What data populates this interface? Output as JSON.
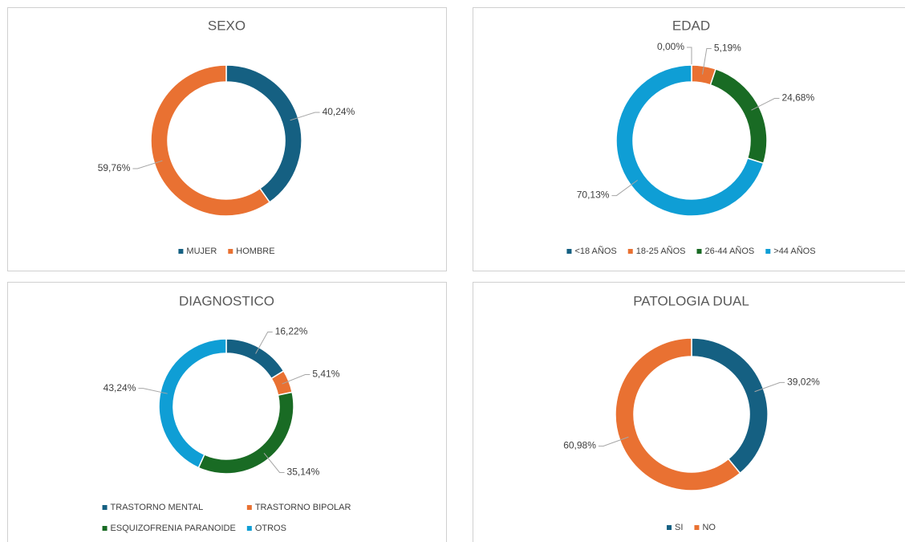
{
  "chart_data": [
    {
      "type": "donut",
      "title": "SEXO",
      "categories": [
        "MUJER",
        "HOMBRE"
      ],
      "values": [
        40.24,
        59.76
      ],
      "value_labels": [
        "40,24%",
        "59,76%"
      ],
      "colors": [
        "#156082",
        "#e97132"
      ],
      "legend": "bottom"
    },
    {
      "type": "donut",
      "title": "EDAD",
      "categories": [
        "<18 AÑOS",
        "18-25 AÑOS",
        "26-44 AÑOS",
        ">44 AÑOS"
      ],
      "values": [
        0,
        5.19,
        24.68,
        70.13
      ],
      "value_labels": [
        "0,00%",
        "5,19%",
        "24,68%",
        "70,13%"
      ],
      "colors": [
        "#156082",
        "#e97132",
        "#196b24",
        "#0f9ed5"
      ],
      "legend": "bottom"
    },
    {
      "type": "donut",
      "title": "DIAGNOSTICO",
      "categories": [
        "TRASTORNO MENTAL",
        "TRASTORNO BIPOLAR",
        "ESQUIZOFRENIA PARANOIDE",
        "OTROS"
      ],
      "values": [
        16.22,
        5.41,
        35.14,
        43.24
      ],
      "value_labels": [
        "16,22%",
        "5,41%",
        "35,14%",
        "43,24%"
      ],
      "colors": [
        "#156082",
        "#e97132",
        "#196b24",
        "#0f9ed5"
      ],
      "legend": "bottom"
    },
    {
      "type": "donut",
      "title": "PATOLOGIA DUAL",
      "categories": [
        "SI",
        "NO"
      ],
      "values": [
        39.02,
        60.98
      ],
      "value_labels": [
        "39,02%",
        "60,98%"
      ],
      "colors": [
        "#156082",
        "#e97132"
      ],
      "legend": "bottom"
    }
  ]
}
